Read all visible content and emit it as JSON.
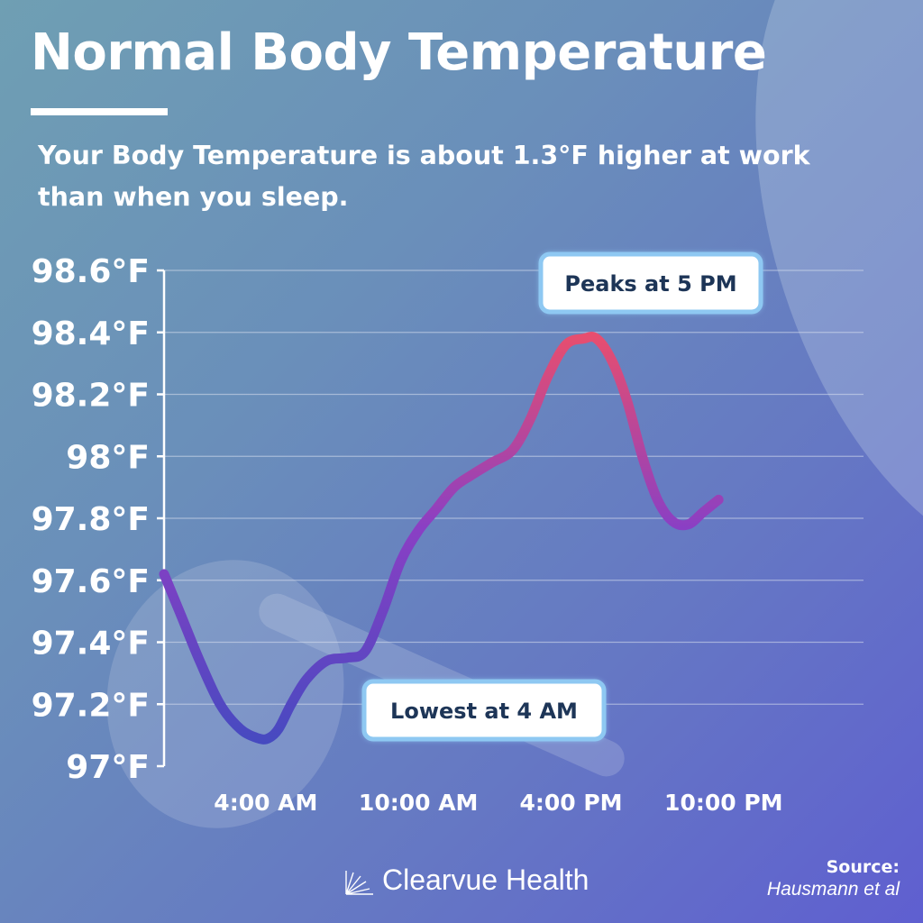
{
  "title": "Normal Body Temperature",
  "subtitle": "Your Body Temperature is about 1.3°F higher at work than when you sleep.",
  "chart_data": {
    "type": "line",
    "title": "",
    "xlabel": "",
    "ylabel": "",
    "ylim": [
      97.0,
      98.6
    ],
    "y_ticks": [
      "98.6°F",
      "98.4°F",
      "98.2°F",
      "98°F",
      "97.8°F",
      "97.6°F",
      "97.4°F",
      "97.2°F",
      "97°F"
    ],
    "x_ticks": [
      "4:00 AM",
      "10:00 AM",
      "4:00 PM",
      "10:00 PM"
    ],
    "x_tick_hours": [
      4,
      10,
      16,
      22
    ],
    "xlim_hours": [
      0,
      24
    ],
    "grid": true,
    "series": [
      {
        "hours": [
          0.0,
          0.7,
          1.4,
          2.2,
          3.0,
          3.7,
          4.1,
          4.5,
          5.0,
          5.6,
          6.4,
          7.2,
          7.9,
          8.6,
          9.3,
          10.0,
          10.7,
          11.4,
          12.1,
          12.9,
          13.7,
          14.4,
          15.1,
          15.8,
          16.5,
          17.0,
          17.6,
          18.2,
          18.8,
          19.4,
          20.0,
          20.6,
          21.2,
          21.8
        ],
        "values": [
          97.62,
          97.48,
          97.34,
          97.2,
          97.12,
          97.09,
          97.09,
          97.12,
          97.2,
          97.28,
          97.34,
          97.35,
          97.37,
          97.5,
          97.66,
          97.76,
          97.83,
          97.9,
          97.94,
          97.98,
          98.02,
          98.12,
          98.26,
          98.36,
          98.38,
          98.38,
          98.31,
          98.18,
          98.0,
          97.86,
          97.79,
          97.78,
          97.82,
          97.86
        ]
      }
    ],
    "annotations": [
      {
        "text": "Peaks at 5 PM"
      },
      {
        "text": "Lowest at 4 AM"
      }
    ],
    "colors": {
      "line_low": "#3f4bc0",
      "line_mid": "#8a3fc4",
      "line_high": "#e84e6e",
      "grid": "#d8e0ee",
      "label_border": "#8ec8f2",
      "label_text": "#1d3557"
    }
  },
  "footer": {
    "brand": "Clearvue Health",
    "source_label": "Source:",
    "source_name": "Hausmann et al"
  }
}
